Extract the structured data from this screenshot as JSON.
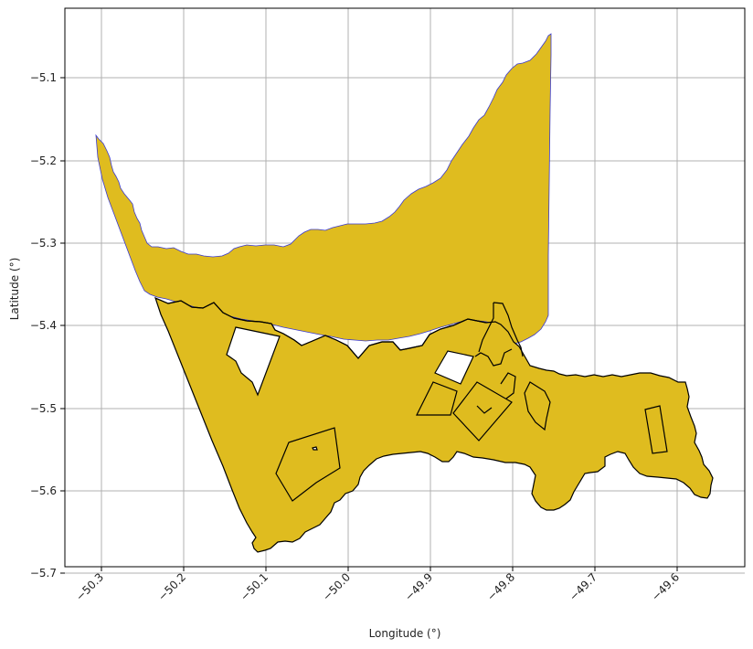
{
  "chart_data": {
    "type": "map",
    "xlabel": "Longitude (°)",
    "ylabel": "Latitude (°)",
    "xlim": [
      -50.345,
      -49.513
    ],
    "ylim": [
      -5.706,
      -5.019
    ],
    "xticks": [
      "−50.3",
      "−50.2",
      "−50.1",
      "−50.0",
      "−49.9",
      "−49.8",
      "−49.7",
      "−49.6"
    ],
    "yticks": [
      "−5.1",
      "−5.2",
      "−5.3",
      "−5.4",
      "−5.5",
      "−5.6",
      "−5.7"
    ],
    "grid": true,
    "fill_color": "#DFBC1F",
    "outline_color": "#000000",
    "upper_outline_color": "#3a3ad0"
  }
}
